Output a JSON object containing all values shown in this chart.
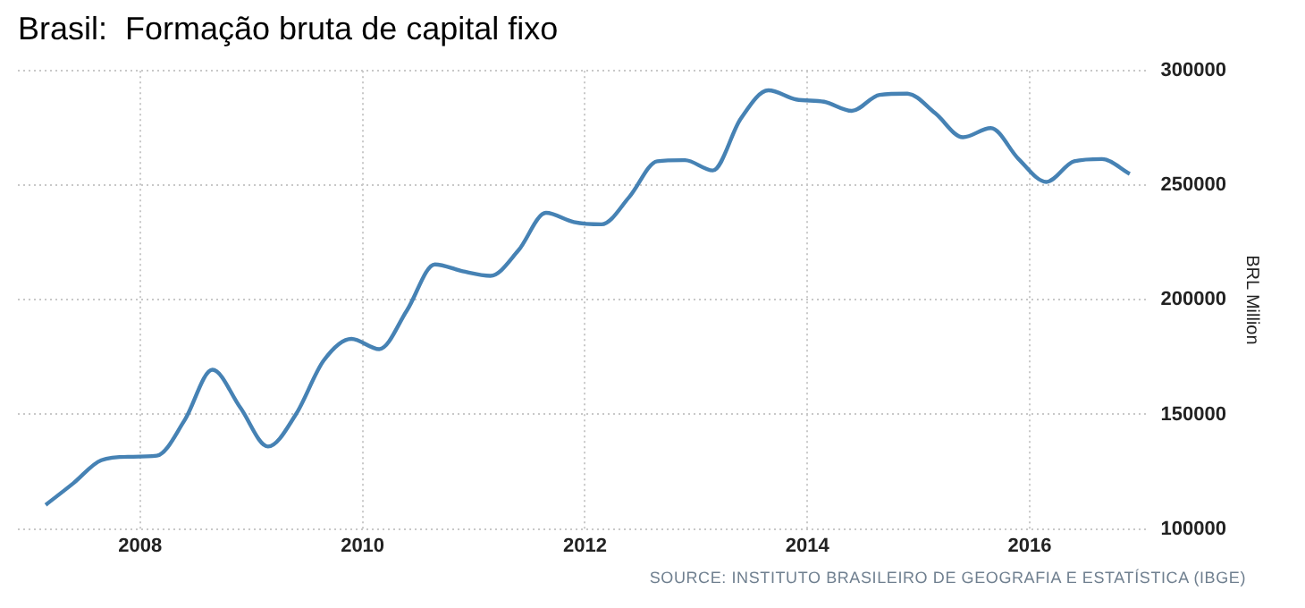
{
  "chart_data": {
    "type": "line",
    "title": "Brasil:  Formação bruta de capital fixo",
    "ylabel": "BRL Million",
    "annotations": [
      "SOURCE: INSTITUTO BRASILEIRO DE GEOGRAFIA E ESTATÍSTICA (IBGE)"
    ],
    "x": [
      2007.15,
      2007.4,
      2007.65,
      2007.9,
      2008.15,
      2008.4,
      2008.65,
      2008.9,
      2009.15,
      2009.4,
      2009.65,
      2009.9,
      2010.15,
      2010.4,
      2010.65,
      2010.9,
      2011.15,
      2011.4,
      2011.65,
      2011.9,
      2012.15,
      2012.4,
      2012.65,
      2012.9,
      2013.15,
      2013.4,
      2013.65,
      2013.9,
      2014.15,
      2014.4,
      2014.65,
      2014.9,
      2015.15,
      2015.4,
      2015.65,
      2015.9,
      2016.15,
      2016.4,
      2016.65,
      2016.9
    ],
    "series": [
      {
        "color": "#4682b4",
        "values": [
          110500,
          120000,
          130000,
          131500,
          132000,
          147500,
          169500,
          153000,
          136000,
          150000,
          173500,
          183000,
          178500,
          195500,
          215500,
          212500,
          210500,
          221500,
          238000,
          234000,
          233000,
          245000,
          260500,
          261000,
          256500,
          279000,
          291500,
          287500,
          286500,
          282500,
          289500,
          290000,
          281500,
          271000,
          275000,
          261500,
          251500,
          260500,
          261500,
          255000
        ]
      }
    ],
    "xlim": [
      2006.9,
      2017.05
    ],
    "xticks": [
      2008,
      2010,
      2012,
      2014,
      2016
    ],
    "ylim": [
      100000,
      300000
    ],
    "yticks": [
      100000,
      150000,
      200000,
      250000,
      300000
    ],
    "grid": true,
    "legend": false,
    "marker": "none",
    "line_style": "solid"
  }
}
